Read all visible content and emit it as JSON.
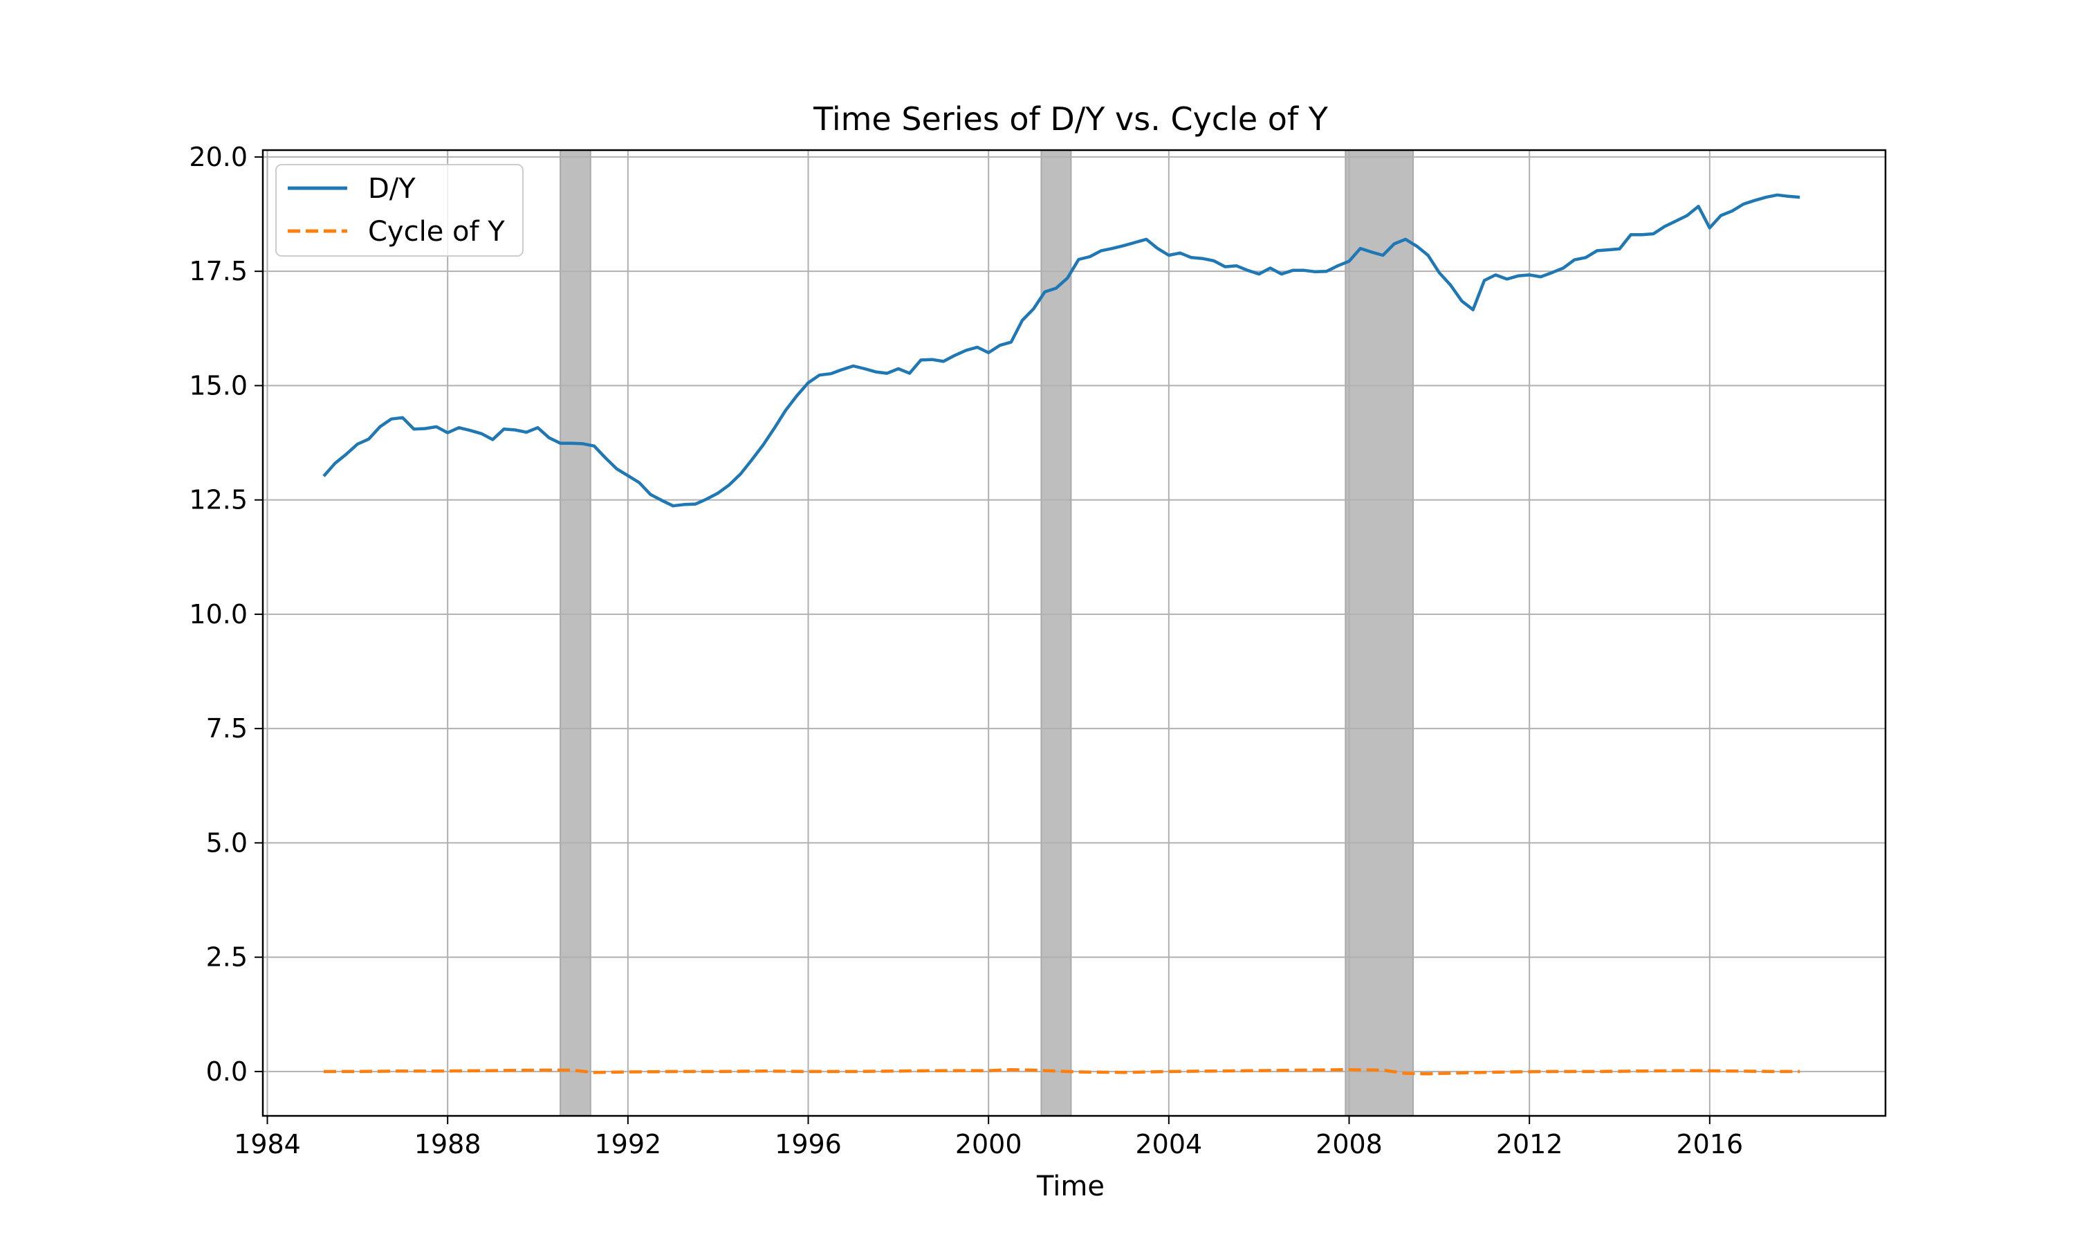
{
  "chart_data": {
    "type": "line",
    "title": "Time Series of D/Y vs. Cycle of Y",
    "xlabel": "Time",
    "ylabel": "",
    "xlim": [
      1983.9,
      2019.9
    ],
    "ylim": [
      -0.97,
      20.15
    ],
    "xticks": [
      1984,
      1988,
      1992,
      1996,
      2000,
      2004,
      2008,
      2012,
      2016
    ],
    "xtick_labels": [
      "1984",
      "1988",
      "1992",
      "1996",
      "2000",
      "2004",
      "2008",
      "2012",
      "2016"
    ],
    "yticks": [
      0,
      2.5,
      5,
      7.5,
      10,
      12.5,
      15,
      17.5,
      20
    ],
    "ytick_labels": [
      "0.0",
      "2.5",
      "5.0",
      "7.5",
      "10.0",
      "12.5",
      "15.0",
      "17.5",
      "20.0"
    ],
    "grid": true,
    "legend_position": "upper-left",
    "recession_shading": [
      {
        "start": 1990.5,
        "end": 1991.17
      },
      {
        "start": 2001.17,
        "end": 2001.83
      },
      {
        "start": 2007.92,
        "end": 2009.42
      }
    ],
    "shade_color": "#bebebe",
    "series": [
      {
        "name": "D/Y",
        "style": "solid",
        "color": "#1f77b4",
        "x": [
          1985.25,
          1985.5,
          1985.75,
          1986,
          1986.25,
          1986.5,
          1986.75,
          1987,
          1987.25,
          1987.5,
          1987.75,
          1988,
          1988.25,
          1988.5,
          1988.75,
          1989,
          1989.25,
          1989.5,
          1989.75,
          1990,
          1990.25,
          1990.5,
          1990.75,
          1991,
          1991.25,
          1991.5,
          1991.75,
          1992,
          1992.25,
          1992.5,
          1992.75,
          1993,
          1993.25,
          1993.5,
          1993.75,
          1994,
          1994.25,
          1994.5,
          1994.75,
          1995,
          1995.25,
          1995.5,
          1995.75,
          1996,
          1996.25,
          1996.5,
          1996.75,
          1997,
          1997.25,
          1997.5,
          1997.75,
          1998,
          1998.25,
          1998.5,
          1998.75,
          1999,
          1999.25,
          1999.5,
          1999.75,
          2000,
          2000.25,
          2000.5,
          2000.75,
          2001,
          2001.25,
          2001.5,
          2001.75,
          2002,
          2002.25,
          2002.5,
          2002.75,
          2003,
          2003.25,
          2003.5,
          2003.75,
          2004,
          2004.25,
          2004.5,
          2004.75,
          2005,
          2005.25,
          2005.5,
          2005.75,
          2006,
          2006.25,
          2006.5,
          2006.75,
          2007,
          2007.25,
          2007.5,
          2007.75,
          2008,
          2008.25,
          2008.5,
          2008.75,
          2009,
          2009.25,
          2009.5,
          2009.75,
          2010,
          2010.25,
          2010.5,
          2010.75,
          2011,
          2011.25,
          2011.5,
          2011.75,
          2012,
          2012.25,
          2012.5,
          2012.75,
          2013,
          2013.25,
          2013.5,
          2013.75,
          2014,
          2014.25,
          2014.5,
          2014.75,
          2015,
          2015.25,
          2015.5,
          2015.75,
          2016,
          2016.25,
          2016.5,
          2016.75,
          2017,
          2017.25,
          2017.5,
          2017.75,
          2018
        ],
        "values": [
          13.02,
          13.3,
          13.5,
          13.72,
          13.83,
          14.1,
          14.27,
          14.3,
          14.05,
          14.06,
          14.1,
          13.97,
          14.08,
          14.02,
          13.95,
          13.82,
          14.05,
          14.03,
          13.98,
          14.08,
          13.86,
          13.74,
          13.74,
          13.73,
          13.68,
          13.42,
          13.18,
          13.03,
          12.88,
          12.62,
          12.49,
          12.37,
          12.4,
          12.41,
          12.52,
          12.65,
          12.83,
          13.07,
          13.38,
          13.7,
          14.07,
          14.46,
          14.78,
          15.06,
          15.23,
          15.26,
          15.35,
          15.43,
          15.37,
          15.3,
          15.27,
          15.37,
          15.27,
          15.56,
          15.57,
          15.53,
          15.66,
          15.77,
          15.84,
          15.72,
          15.88,
          15.95,
          16.43,
          16.68,
          17.05,
          17.13,
          17.35,
          17.76,
          17.82,
          17.95,
          18.0,
          18.06,
          18.13,
          18.2,
          18.0,
          17.85,
          17.9,
          17.8,
          17.78,
          17.73,
          17.6,
          17.62,
          17.52,
          17.44,
          17.57,
          17.44,
          17.52,
          17.52,
          17.49,
          17.5,
          17.62,
          17.72,
          18.0,
          17.92,
          17.85,
          18.1,
          18.2,
          18.05,
          17.85,
          17.47,
          17.2,
          16.85,
          16.66,
          17.3,
          17.42,
          17.33,
          17.4,
          17.42,
          17.38,
          17.47,
          17.57,
          17.75,
          17.8,
          17.95,
          17.97,
          17.99,
          18.3,
          18.3,
          18.32,
          18.48,
          18.6,
          18.72,
          18.92,
          18.45,
          18.72,
          18.82,
          18.97,
          19.05,
          19.12,
          19.17,
          19.14,
          19.12
        ]
      },
      {
        "name": "Cycle of Y",
        "style": "dashed",
        "color": "#ff7f0e",
        "x": [
          1985.25,
          1986,
          1987,
          1988,
          1989,
          1990,
          1990.75,
          1991.25,
          1992,
          1993,
          1994,
          1995,
          1996,
          1997,
          1998,
          1999,
          2000,
          2000.5,
          2001,
          2001.5,
          2002,
          2003,
          2004,
          2005,
          2006,
          2007,
          2008,
          2008.75,
          2009.25,
          2009.75,
          2010.5,
          2011.5,
          2012.5,
          2013.5,
          2014.5,
          2015.5,
          2016.5,
          2017.5,
          2018
        ],
        "values": [
          0.0,
          0.0,
          0.01,
          0.01,
          0.02,
          0.03,
          0.03,
          -0.02,
          -0.01,
          0.0,
          0.0,
          0.01,
          0.0,
          0.0,
          0.01,
          0.02,
          0.02,
          0.04,
          0.03,
          0.01,
          -0.01,
          -0.02,
          0.0,
          0.01,
          0.02,
          0.03,
          0.04,
          0.03,
          -0.04,
          -0.05,
          -0.03,
          -0.01,
          0.0,
          0.0,
          0.01,
          0.02,
          0.01,
          0.0,
          0.0
        ]
      }
    ]
  }
}
